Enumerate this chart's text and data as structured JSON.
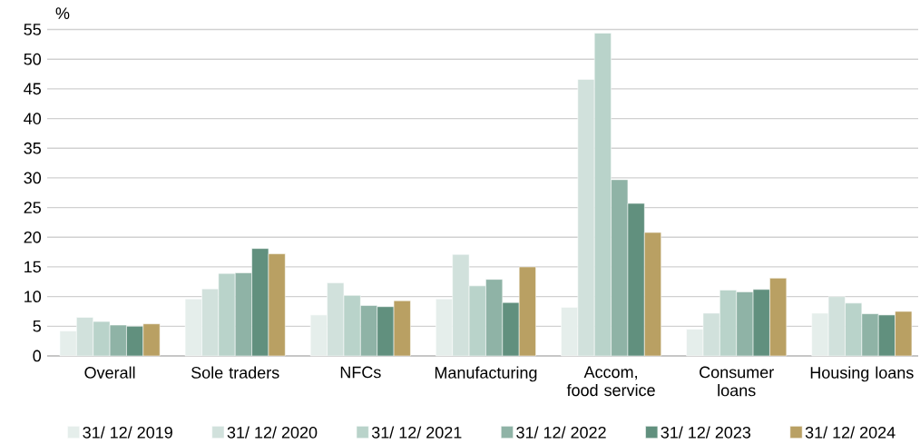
{
  "chart_data": {
    "type": "bar",
    "ylabel": "%",
    "categories": [
      "Overall",
      "Sole traders",
      "NFCs",
      "Manufacturing",
      "Accom, food service",
      "Consumer loans",
      "Housing loans"
    ],
    "series": [
      {
        "name": "31/ 12/ 2019",
        "color": "#e5eeeb",
        "values": [
          4.2,
          9.6,
          6.9,
          9.6,
          8.2,
          4.5,
          7.2
        ]
      },
      {
        "name": "31/ 12/ 2020",
        "color": "#d1e1dc",
        "values": [
          6.5,
          11.3,
          12.3,
          17.1,
          46.6,
          7.2,
          10.0
        ]
      },
      {
        "name": "31/ 12/ 2021",
        "color": "#b9d3ca",
        "values": [
          5.8,
          13.9,
          10.2,
          11.8,
          54.4,
          11.1,
          8.9
        ]
      },
      {
        "name": "31/ 12/ 2022",
        "color": "#8fb3a6",
        "values": [
          5.2,
          14.0,
          8.5,
          12.9,
          29.7,
          10.8,
          7.1
        ]
      },
      {
        "name": "31/ 12/ 2023",
        "color": "#61907e",
        "values": [
          5.0,
          18.1,
          8.3,
          9.0,
          25.7,
          11.2,
          6.9
        ]
      },
      {
        "name": "31/ 12/ 2024",
        "color": "#b9a063",
        "values": [
          5.4,
          17.2,
          9.3,
          15.0,
          20.8,
          13.1,
          7.5
        ]
      }
    ],
    "ylim": [
      0,
      55
    ],
    "yticks": [
      0,
      5,
      10,
      15,
      20,
      25,
      30,
      35,
      40,
      45,
      50,
      55
    ],
    "grid": "y",
    "legend": "bottom"
  }
}
